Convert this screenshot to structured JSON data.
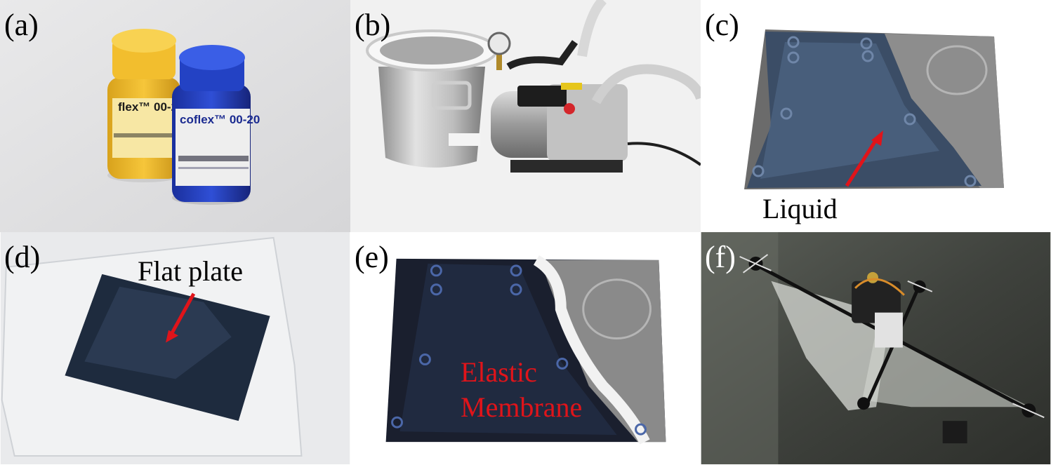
{
  "panels": {
    "a": {
      "label": "(a)",
      "bottle_yellow_text": "flex™ 00-20",
      "bottle_blue_text": "coflex™ 00-20"
    },
    "b": {
      "label": "(b)"
    },
    "c": {
      "label": "(c)",
      "annotation": "Liquid"
    },
    "d": {
      "label": "(d)",
      "annotation": "Flat plate"
    },
    "e": {
      "label": "(e)",
      "annotation_line1": "Elastic",
      "annotation_line2": "Membrane"
    },
    "f": {
      "label": "(f)"
    }
  },
  "colors": {
    "arrow": "#e0141a",
    "annotation_red": "#e0141a"
  }
}
